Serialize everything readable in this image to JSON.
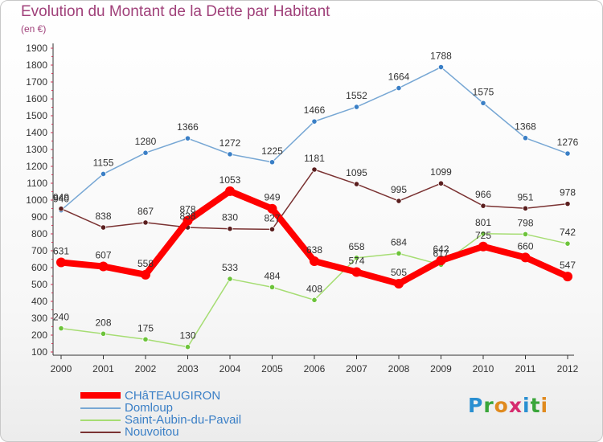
{
  "title": "Evolution du Montant de la Dette par Habitant",
  "subtitle": "(en €)",
  "logo": {
    "text": "Proxiti",
    "letter_colors": [
      "#2a8fd1",
      "#3aa63a",
      "#e08a1e",
      "#d62b6e",
      "#2a8fd1",
      "#3aa63a",
      "#e08a1e"
    ]
  },
  "colors": {
    "title": "#a0417a",
    "axis": "#333333",
    "grid_tick": "#cc3355"
  },
  "chart_data": {
    "type": "line",
    "title": "Evolution du Montant de la Dette par Habitant",
    "subtitle": "(en €)",
    "xlabel": "",
    "ylabel": "",
    "x": [
      "2000",
      "2001",
      "2002",
      "2003",
      "2004",
      "2005",
      "2006",
      "2007",
      "2008",
      "2009",
      "2010",
      "2011",
      "2012"
    ],
    "ylim": [
      100,
      1900
    ],
    "yticks": [
      "100",
      "200",
      "300",
      "400",
      "500",
      "600",
      "700",
      "800",
      "900",
      "1000",
      "1100",
      "1200",
      "1300",
      "1400",
      "1500",
      "1600",
      "1700",
      "1800",
      "1900"
    ],
    "grid": false,
    "legend_position": "bottom-left",
    "series": [
      {
        "name": "CHâTEAUGIRON",
        "color": "#ff0000",
        "marker": "#ff0000",
        "thick": true,
        "values": [
          631,
          607,
          558,
          878,
          1053,
          949,
          638,
          574,
          505,
          642,
          725,
          660,
          547
        ],
        "labels": [
          "631",
          "607",
          "558",
          "878",
          "1053",
          "949",
          "638",
          "574",
          "505",
          "642",
          "725",
          "660",
          "547"
        ]
      },
      {
        "name": "Domloup",
        "color": "#77a7d4",
        "marker": "#3a7fc6",
        "thick": false,
        "values": [
          940,
          1155,
          1280,
          1366,
          1272,
          1225,
          1466,
          1552,
          1664,
          1788,
          1575,
          1368,
          1276
        ],
        "labels": [
          "940",
          "1155",
          "1280",
          "1366",
          "1272",
          "1225",
          "1466",
          "1552",
          "1664",
          "1788",
          "1575",
          "1368",
          "1276"
        ]
      },
      {
        "name": "Saint-Aubin-du-Pavail",
        "color": "#a6dd73",
        "marker": "#6cc33a",
        "thick": false,
        "values": [
          240,
          208,
          175,
          130,
          533,
          484,
          408,
          658,
          684,
          617,
          801,
          798,
          742
        ],
        "labels": [
          "240",
          "208",
          "175",
          "130",
          "533",
          "484",
          "408",
          "658",
          "684",
          "617",
          "801",
          "798",
          "742"
        ]
      },
      {
        "name": "Nouvoitou",
        "color": "#7a3232",
        "marker": "#5a1e1e",
        "thick": false,
        "values": [
          949,
          838,
          867,
          838,
          830,
          827,
          1181,
          1095,
          995,
          1099,
          966,
          951,
          978
        ],
        "labels": [
          "949",
          "838",
          "867",
          "838",
          "830",
          "827",
          "1181",
          "1095",
          "995",
          "1099",
          "966",
          "951",
          "978"
        ]
      }
    ]
  }
}
